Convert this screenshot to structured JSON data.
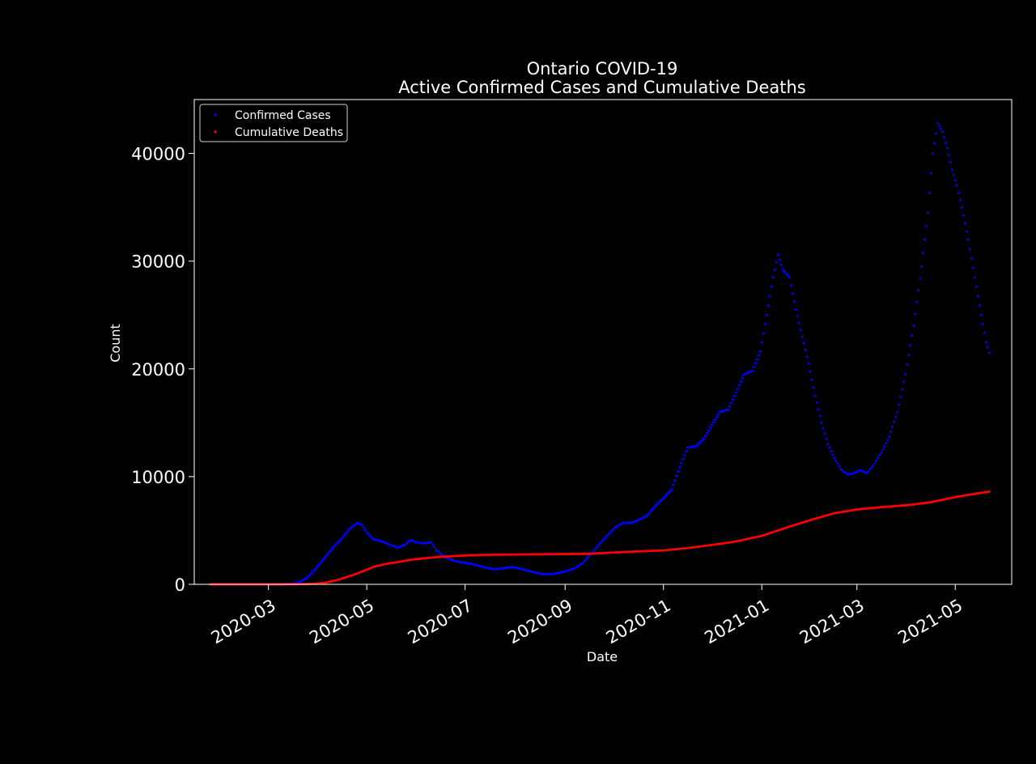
{
  "chart_data": {
    "type": "scatter",
    "title": "Ontario COVID-19",
    "subtitle": "Active Confirmed Cases and Cumulative Deaths",
    "xlabel": "Date",
    "ylabel": "Count",
    "x_axis_type": "date",
    "xlim": [
      "2020-01-15",
      "2021-06-05"
    ],
    "ylim": [
      0,
      45000
    ],
    "x_ticks": [
      "2020-03-01",
      "2020-05-01",
      "2020-07-01",
      "2020-09-01",
      "2020-11-01",
      "2021-01-01",
      "2021-03-01",
      "2021-05-01"
    ],
    "x_tick_labels": [
      "2020-03",
      "2020-05",
      "2020-07",
      "2020-09",
      "2020-11",
      "2021-01",
      "2021-03",
      "2021-05"
    ],
    "y_ticks": [
      0,
      10000,
      20000,
      30000,
      40000
    ],
    "y_tick_labels": [
      "0",
      "10000",
      "20000",
      "30000",
      "40000"
    ],
    "grid": false,
    "legend_position": "upper-left",
    "background_color": "#000000",
    "text_color": "#ffffff",
    "series": [
      {
        "name": "Confirmed Cases",
        "color": "#0000ff",
        "marker": "dot",
        "points": [
          [
            "2020-01-25",
            0
          ],
          [
            "2020-02-15",
            0
          ],
          [
            "2020-03-01",
            0
          ],
          [
            "2020-03-10",
            10
          ],
          [
            "2020-03-15",
            50
          ],
          [
            "2020-03-20",
            200
          ],
          [
            "2020-03-25",
            600
          ],
          [
            "2020-03-30",
            1400
          ],
          [
            "2020-04-05",
            2500
          ],
          [
            "2020-04-10",
            3400
          ],
          [
            "2020-04-15",
            4200
          ],
          [
            "2020-04-20",
            5100
          ],
          [
            "2020-04-25",
            5700
          ],
          [
            "2020-04-28",
            5500
          ],
          [
            "2020-05-01",
            4800
          ],
          [
            "2020-05-05",
            4200
          ],
          [
            "2020-05-10",
            4000
          ],
          [
            "2020-05-15",
            3700
          ],
          [
            "2020-05-20",
            3400
          ],
          [
            "2020-05-25",
            3700
          ],
          [
            "2020-05-28",
            4100
          ],
          [
            "2020-06-01",
            3900
          ],
          [
            "2020-06-05",
            3800
          ],
          [
            "2020-06-10",
            3900
          ],
          [
            "2020-06-13",
            3200
          ],
          [
            "2020-06-18",
            2600
          ],
          [
            "2020-06-22",
            2300
          ],
          [
            "2020-06-26",
            2100
          ],
          [
            "2020-07-01",
            2000
          ],
          [
            "2020-07-05",
            1900
          ],
          [
            "2020-07-10",
            1700
          ],
          [
            "2020-07-15",
            1500
          ],
          [
            "2020-07-20",
            1400
          ],
          [
            "2020-07-25",
            1500
          ],
          [
            "2020-07-30",
            1600
          ],
          [
            "2020-08-03",
            1500
          ],
          [
            "2020-08-08",
            1300
          ],
          [
            "2020-08-13",
            1100
          ],
          [
            "2020-08-18",
            950
          ],
          [
            "2020-08-23",
            950
          ],
          [
            "2020-08-28",
            1050
          ],
          [
            "2020-09-02",
            1250
          ],
          [
            "2020-09-07",
            1500
          ],
          [
            "2020-09-12",
            2000
          ],
          [
            "2020-09-17",
            2800
          ],
          [
            "2020-09-22",
            3700
          ],
          [
            "2020-09-27",
            4500
          ],
          [
            "2020-10-02",
            5300
          ],
          [
            "2020-10-07",
            5700
          ],
          [
            "2020-10-12",
            5700
          ],
          [
            "2020-10-17",
            6000
          ],
          [
            "2020-10-22",
            6400
          ],
          [
            "2020-10-27",
            7300
          ],
          [
            "2020-11-01",
            8000
          ],
          [
            "2020-11-06",
            8800
          ],
          [
            "2020-11-11",
            10900
          ],
          [
            "2020-11-16",
            12700
          ],
          [
            "2020-11-21",
            12800
          ],
          [
            "2020-11-26",
            13500
          ],
          [
            "2020-12-01",
            14800
          ],
          [
            "2020-12-06",
            16000
          ],
          [
            "2020-12-11",
            16200
          ],
          [
            "2020-12-16",
            17800
          ],
          [
            "2020-12-21",
            19500
          ],
          [
            "2020-12-26",
            19800
          ],
          [
            "2020-12-31",
            21600
          ],
          [
            "2021-01-04",
            25000
          ],
          [
            "2021-01-08",
            28500
          ],
          [
            "2021-01-11",
            30600
          ],
          [
            "2021-01-14",
            29200
          ],
          [
            "2021-01-18",
            28500
          ],
          [
            "2021-01-22",
            25500
          ],
          [
            "2021-01-26",
            23000
          ],
          [
            "2021-01-30",
            20500
          ],
          [
            "2021-02-03",
            17500
          ],
          [
            "2021-02-07",
            15000
          ],
          [
            "2021-02-11",
            13000
          ],
          [
            "2021-02-15",
            11700
          ],
          [
            "2021-02-19",
            10700
          ],
          [
            "2021-02-23",
            10200
          ],
          [
            "2021-02-27",
            10300
          ],
          [
            "2021-03-03",
            10600
          ],
          [
            "2021-03-07",
            10300
          ],
          [
            "2021-03-11",
            11000
          ],
          [
            "2021-03-16",
            12200
          ],
          [
            "2021-03-21",
            13700
          ],
          [
            "2021-03-26",
            16000
          ],
          [
            "2021-03-31",
            19500
          ],
          [
            "2021-04-05",
            24000
          ],
          [
            "2021-04-10",
            29500
          ],
          [
            "2021-04-14",
            34500
          ],
          [
            "2021-04-17",
            40000
          ],
          [
            "2021-04-20",
            42800
          ],
          [
            "2021-04-23",
            42000
          ],
          [
            "2021-04-26",
            40500
          ],
          [
            "2021-04-29",
            38500
          ],
          [
            "2021-05-02",
            37000
          ],
          [
            "2021-05-05",
            35000
          ],
          [
            "2021-05-09",
            32000
          ],
          [
            "2021-05-13",
            28500
          ],
          [
            "2021-05-17",
            25000
          ],
          [
            "2021-05-20",
            22500
          ],
          [
            "2021-05-22",
            21500
          ]
        ]
      },
      {
        "name": "Cumulative Deaths",
        "color": "#ff0000",
        "marker": "dot",
        "points": [
          [
            "2020-01-25",
            0
          ],
          [
            "2020-03-01",
            0
          ],
          [
            "2020-03-20",
            10
          ],
          [
            "2020-03-30",
            60
          ],
          [
            "2020-04-05",
            150
          ],
          [
            "2020-04-10",
            300
          ],
          [
            "2020-04-15",
            500
          ],
          [
            "2020-04-20",
            750
          ],
          [
            "2020-04-25",
            1000
          ],
          [
            "2020-04-30",
            1300
          ],
          [
            "2020-05-05",
            1600
          ],
          [
            "2020-05-10",
            1800
          ],
          [
            "2020-05-15",
            1950
          ],
          [
            "2020-05-20",
            2050
          ],
          [
            "2020-05-25",
            2200
          ],
          [
            "2020-06-01",
            2350
          ],
          [
            "2020-06-08",
            2450
          ],
          [
            "2020-06-15",
            2550
          ],
          [
            "2020-06-22",
            2600
          ],
          [
            "2020-07-01",
            2680
          ],
          [
            "2020-07-15",
            2740
          ],
          [
            "2020-08-01",
            2770
          ],
          [
            "2020-08-15",
            2790
          ],
          [
            "2020-09-01",
            2810
          ],
          [
            "2020-09-15",
            2830
          ],
          [
            "2020-10-01",
            2950
          ],
          [
            "2020-10-15",
            3050
          ],
          [
            "2020-11-01",
            3150
          ],
          [
            "2020-11-15",
            3350
          ],
          [
            "2020-12-01",
            3650
          ],
          [
            "2020-12-15",
            3950
          ],
          [
            "2021-01-01",
            4500
          ],
          [
            "2021-01-15",
            5200
          ],
          [
            "2021-02-01",
            6000
          ],
          [
            "2021-02-15",
            6600
          ],
          [
            "2021-03-01",
            6950
          ],
          [
            "2021-03-15",
            7150
          ],
          [
            "2021-04-01",
            7350
          ],
          [
            "2021-04-15",
            7600
          ],
          [
            "2021-05-01",
            8100
          ],
          [
            "2021-05-15",
            8450
          ],
          [
            "2021-05-22",
            8600
          ]
        ]
      }
    ]
  }
}
